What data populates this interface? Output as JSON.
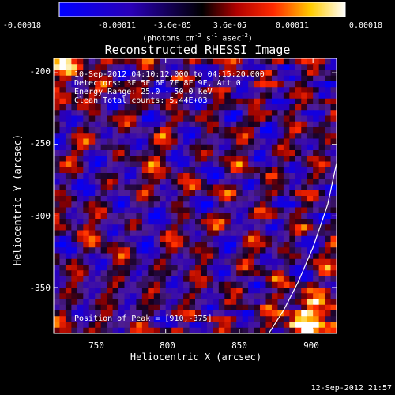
{
  "colorbar": {
    "ticks": [
      "-0.00018",
      "-0.00011",
      "-3.6e-05",
      "3.6e-05",
      "0.00011",
      "0.00018"
    ],
    "units_main": "(photons cm",
    "units_sup1": "-2",
    "units_mid1": " s",
    "units_sup2": "-1",
    "units_mid2": " asec",
    "units_sup3": "-2",
    "units_end": ")",
    "min": -0.00018,
    "max": 0.00018
  },
  "annotations": {
    "time_range": "10-Sep-2012 04:10:12.000 to 04:15:20.000",
    "detectors": "Detectors: 3F 5F 6F 7F 8F 9F, Att 0",
    "energy": "Energy Range: 25.0 - 50.0 keV",
    "clean": "Clean    Total counts: 5.44E+03",
    "peak": "Position of Peak = [910,-375]"
  },
  "timestamp": "12-Sep-2012 21:57",
  "chart_data": {
    "type": "heatmap",
    "title": "Reconstructed RHESSI Image",
    "xlabel": "Heliocentric X (arcsec)",
    "ylabel": "Heliocentric Y (arcsec)",
    "xlim": [
      724,
      916
    ],
    "ylim": [
      -382,
      -190
    ],
    "xticks": [
      "750",
      "800",
      "850",
      "900"
    ],
    "xtick_values": [
      750,
      800,
      850,
      900
    ],
    "yticks": [
      "-200",
      "-250",
      "-300",
      "-350"
    ],
    "ytick_values": [
      -200,
      -250,
      -300,
      -350
    ],
    "limb": {
      "x": [
        870,
        880,
        890,
        900,
        910,
        916
      ],
      "y": [
        -382,
        -366,
        -346,
        -322,
        -292,
        -263
      ]
    },
    "peak": [
      910,
      -375
    ],
    "colormap": "RHESSI blue-black-red-yellow-white",
    "grid": false
  }
}
